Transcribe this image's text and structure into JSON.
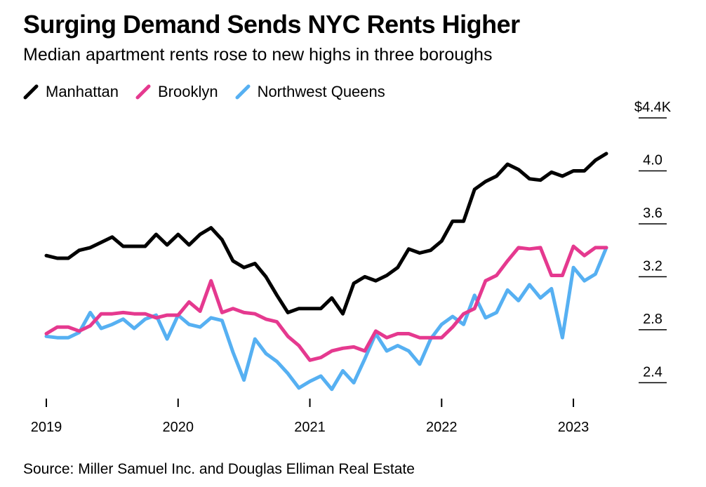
{
  "title": "Surging Demand Sends NYC Rents Higher",
  "subtitle": "Median apartment rents rose to new highs in three boroughs",
  "source": "Source: Miller Samuel Inc. and Douglas Elliman Real Estate",
  "chart_data": {
    "type": "line",
    "title": "Surging Demand Sends NYC Rents Higher",
    "subtitle": "Median apartment rents rose to new highs in three boroughs",
    "xlabel": "",
    "ylabel": "",
    "x_ticks": [
      "2019",
      "2020",
      "2021",
      "2022",
      "2023"
    ],
    "y_ticks": [
      {
        "value": 4.4,
        "label": "$4.4K"
      },
      {
        "value": 4.0,
        "label": "4.0"
      },
      {
        "value": 3.6,
        "label": "3.6"
      },
      {
        "value": 3.2,
        "label": "3.2"
      },
      {
        "value": 2.8,
        "label": "2.8"
      },
      {
        "value": 2.4,
        "label": "2.4"
      }
    ],
    "ylim": [
      2.28,
      4.4
    ],
    "xlim": [
      "2019-01",
      "2023-04"
    ],
    "grid": false,
    "legend_position": "top-left",
    "x": [
      "2019-01",
      "2019-02",
      "2019-03",
      "2019-04",
      "2019-05",
      "2019-06",
      "2019-07",
      "2019-08",
      "2019-09",
      "2019-10",
      "2019-11",
      "2019-12",
      "2020-01",
      "2020-02",
      "2020-03",
      "2020-04",
      "2020-05",
      "2020-06",
      "2020-07",
      "2020-08",
      "2020-09",
      "2020-10",
      "2020-11",
      "2020-12",
      "2021-01",
      "2021-02",
      "2021-03",
      "2021-04",
      "2021-05",
      "2021-06",
      "2021-07",
      "2021-08",
      "2021-09",
      "2021-10",
      "2021-11",
      "2021-12",
      "2022-01",
      "2022-02",
      "2022-03",
      "2022-04",
      "2022-05",
      "2022-06",
      "2022-07",
      "2022-08",
      "2022-09",
      "2022-10",
      "2022-11",
      "2022-12",
      "2023-01",
      "2023-02",
      "2023-03",
      "2023-04"
    ],
    "series": [
      {
        "name": "Manhattan",
        "color": "#000000",
        "values": [
          3.36,
          3.34,
          3.34,
          3.4,
          3.42,
          3.46,
          3.5,
          3.43,
          3.43,
          3.43,
          3.52,
          3.44,
          3.52,
          3.44,
          3.52,
          3.57,
          3.48,
          3.32,
          3.27,
          3.3,
          3.2,
          3.06,
          2.93,
          2.96,
          2.96,
          2.96,
          3.04,
          2.92,
          3.15,
          3.2,
          3.17,
          3.21,
          3.27,
          3.41,
          3.38,
          3.4,
          3.47,
          3.62,
          3.62,
          3.86,
          3.92,
          3.96,
          4.05,
          4.01,
          3.94,
          3.93,
          3.99,
          3.96,
          4.0,
          4.0,
          4.08,
          4.13
        ]
      },
      {
        "name": "Brooklyn",
        "color": "#e5398f",
        "values": [
          2.77,
          2.82,
          2.82,
          2.79,
          2.83,
          2.92,
          2.92,
          2.93,
          2.92,
          2.92,
          2.89,
          2.91,
          2.91,
          3.01,
          2.94,
          3.17,
          2.93,
          2.96,
          2.93,
          2.92,
          2.88,
          2.86,
          2.75,
          2.68,
          2.57,
          2.59,
          2.64,
          2.66,
          2.67,
          2.64,
          2.79,
          2.74,
          2.77,
          2.77,
          2.74,
          2.74,
          2.74,
          2.82,
          2.92,
          2.96,
          3.17,
          3.21,
          3.32,
          3.42,
          3.41,
          3.42,
          3.21,
          3.21,
          3.43,
          3.36,
          3.42,
          3.42
        ]
      },
      {
        "name": "Northwest Queens",
        "color": "#56b0f2",
        "values": [
          2.75,
          2.74,
          2.74,
          2.78,
          2.93,
          2.81,
          2.84,
          2.88,
          2.81,
          2.88,
          2.91,
          2.73,
          2.91,
          2.84,
          2.82,
          2.89,
          2.87,
          2.63,
          2.42,
          2.73,
          2.62,
          2.56,
          2.47,
          2.36,
          2.41,
          2.45,
          2.35,
          2.49,
          2.4,
          2.58,
          2.77,
          2.64,
          2.68,
          2.64,
          2.54,
          2.73,
          2.84,
          2.9,
          2.84,
          3.06,
          2.89,
          2.93,
          3.1,
          3.02,
          3.14,
          3.04,
          3.11,
          2.74,
          3.27,
          3.17,
          3.22,
          3.42
        ]
      }
    ]
  }
}
